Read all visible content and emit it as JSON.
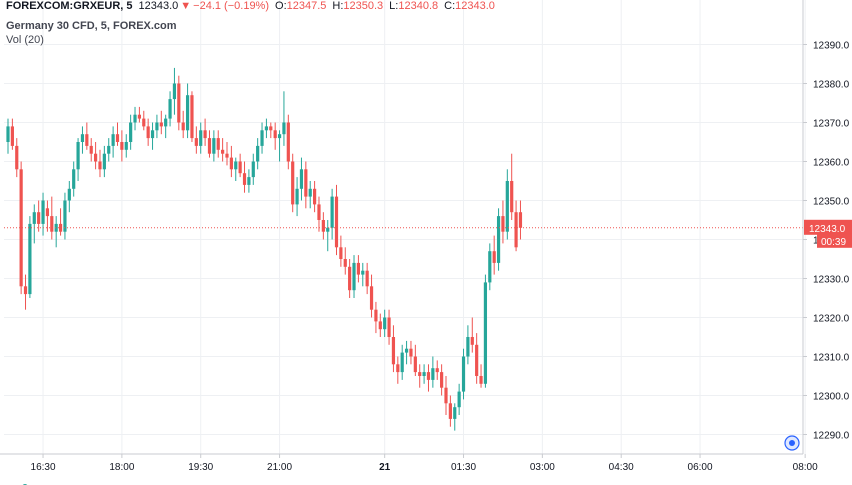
{
  "header": {
    "symbol": "FOREXCOM:GRXEUR, 5",
    "price": "12343.0",
    "change": "−24.1 (−0.19%)",
    "open_label": "O:",
    "open": "12347.5",
    "high_label": "H:",
    "high": "12350.3",
    "low_label": "L:",
    "low": "12340.8",
    "close_label": "C:",
    "close": "12343.0",
    "instrument": "Germany 30 CFD, 5, FOREX.com",
    "volume": "Vol (20)"
  },
  "price_tag": {
    "value": "12343.0",
    "countdown": "00:39"
  },
  "colors": {
    "up": "#26a69a",
    "down": "#ef5350",
    "grid": "#eef0f3",
    "axis_text": "#131722"
  },
  "chart_data": {
    "type": "candlestick",
    "ylim": [
      12285,
      12395
    ],
    "y_ticks": [
      12290,
      12300,
      12310,
      12320,
      12330,
      12340,
      12350,
      12360,
      12370,
      12380,
      12390
    ],
    "y_tick_labels": [
      "12290.0",
      "12300.0",
      "12310.0",
      "12320.0",
      "12330.0",
      "12340.0",
      "12350.0",
      "12360.0",
      "12370.0",
      "12380.0",
      "12390.0"
    ],
    "x_ticks": [
      "16:30",
      "18:00",
      "19:30",
      "21:00",
      "21",
      "01:30",
      "03:00",
      "04:30",
      "06:00",
      "08:00"
    ],
    "x_tick_index": [
      8,
      26,
      44,
      62,
      86,
      104,
      122,
      140,
      158,
      182
    ],
    "last_price": 12343.0,
    "ohlc": [
      [
        12365,
        12371,
        12362,
        12369
      ],
      [
        12369,
        12371,
        12363,
        12364
      ],
      [
        12364,
        12366,
        12356,
        12358
      ],
      [
        12358,
        12360,
        12326,
        12328
      ],
      [
        12328,
        12331,
        12322,
        12326
      ],
      [
        12326,
        12346,
        12325,
        12344
      ],
      [
        12344,
        12349,
        12339,
        12347
      ],
      [
        12347,
        12350,
        12342,
        12344
      ],
      [
        12344,
        12352,
        12341,
        12350
      ],
      [
        12348,
        12350,
        12342,
        12346
      ],
      [
        12346,
        12351,
        12340,
        12342
      ],
      [
        12342,
        12346,
        12338,
        12344
      ],
      [
        12344,
        12348,
        12341,
        12342
      ],
      [
        12342,
        12352,
        12340,
        12350
      ],
      [
        12350,
        12355,
        12347,
        12353
      ],
      [
        12353,
        12360,
        12351,
        12358
      ],
      [
        12358,
        12366,
        12355,
        12365
      ],
      [
        12365,
        12369,
        12362,
        12367
      ],
      [
        12367,
        12370,
        12363,
        12364
      ],
      [
        12364,
        12366,
        12360,
        12362
      ],
      [
        12362,
        12365,
        12358,
        12360
      ],
      [
        12360,
        12363,
        12356,
        12358
      ],
      [
        12358,
        12364,
        12356,
        12362
      ],
      [
        12362,
        12366,
        12360,
        12364
      ],
      [
        12364,
        12369,
        12361,
        12367
      ],
      [
        12367,
        12370,
        12364,
        12365
      ],
      [
        12365,
        12368,
        12360,
        12363
      ],
      [
        12363,
        12367,
        12361,
        12365
      ],
      [
        12365,
        12372,
        12363,
        12370
      ],
      [
        12370,
        12374,
        12368,
        12372
      ],
      [
        12372,
        12374,
        12370,
        12371
      ],
      [
        12371,
        12373,
        12368,
        12369
      ],
      [
        12369,
        12371,
        12364,
        12366
      ],
      [
        12366,
        12370,
        12363,
        12368
      ],
      [
        12368,
        12372,
        12366,
        12370
      ],
      [
        12370,
        12373,
        12367,
        12369
      ],
      [
        12369,
        12372,
        12366,
        12371
      ],
      [
        12371,
        12378,
        12369,
        12376
      ],
      [
        12376,
        12384,
        12372,
        12380
      ],
      [
        12380,
        12382,
        12368,
        12370
      ],
      [
        12370,
        12373,
        12366,
        12368
      ],
      [
        12368,
        12380,
        12366,
        12377
      ],
      [
        12377,
        12378,
        12365,
        12366
      ],
      [
        12366,
        12369,
        12362,
        12364
      ],
      [
        12364,
        12370,
        12362,
        12368
      ],
      [
        12368,
        12371,
        12364,
        12366
      ],
      [
        12366,
        12368,
        12361,
        12362
      ],
      [
        12362,
        12368,
        12360,
        12366
      ],
      [
        12366,
        12368,
        12361,
        12363
      ],
      [
        12363,
        12366,
        12360,
        12362
      ],
      [
        12362,
        12365,
        12359,
        12361
      ],
      [
        12361,
        12364,
        12356,
        12358
      ],
      [
        12358,
        12361,
        12355,
        12360
      ],
      [
        12360,
        12362,
        12356,
        12357
      ],
      [
        12357,
        12360,
        12352,
        12354
      ],
      [
        12354,
        12358,
        12352,
        12356
      ],
      [
        12356,
        12362,
        12354,
        12360
      ],
      [
        12360,
        12366,
        12358,
        12364
      ],
      [
        12364,
        12370,
        12362,
        12368
      ],
      [
        12368,
        12371,
        12366,
        12369
      ],
      [
        12369,
        12370,
        12366,
        12368
      ],
      [
        12368,
        12370,
        12363,
        12366
      ],
      [
        12366,
        12368,
        12360,
        12367
      ],
      [
        12367,
        12378,
        12364,
        12370
      ],
      [
        12370,
        12372,
        12358,
        12360
      ],
      [
        12360,
        12362,
        12347,
        12349
      ],
      [
        12349,
        12356,
        12346,
        12353
      ],
      [
        12353,
        12361,
        12350,
        12358
      ],
      [
        12358,
        12360,
        12348,
        12351
      ],
      [
        12351,
        12355,
        12348,
        12353
      ],
      [
        12353,
        12355,
        12347,
        12349
      ],
      [
        12349,
        12351,
        12342,
        12345
      ],
      [
        12345,
        12347,
        12340,
        12342
      ],
      [
        12342,
        12345,
        12337,
        12343
      ],
      [
        12343,
        12353,
        12340,
        12351
      ],
      [
        12351,
        12354,
        12336,
        12338
      ],
      [
        12338,
        12341,
        12333,
        12335
      ],
      [
        12335,
        12338,
        12331,
        12333
      ],
      [
        12333,
        12335,
        12325,
        12327
      ],
      [
        12327,
        12336,
        12325,
        12334
      ],
      [
        12334,
        12336,
        12329,
        12331
      ],
      [
        12331,
        12334,
        12328,
        12332
      ],
      [
        12332,
        12334,
        12326,
        12328
      ],
      [
        12328,
        12331,
        12320,
        12322
      ],
      [
        12322,
        12324,
        12316,
        12319
      ],
      [
        12319,
        12321,
        12315,
        12317
      ],
      [
        12317,
        12322,
        12315,
        12320
      ],
      [
        12320,
        12322,
        12313,
        12315
      ],
      [
        12315,
        12318,
        12306,
        12308
      ],
      [
        12308,
        12310,
        12303,
        12306
      ],
      [
        12306,
        12313,
        12304,
        12311
      ],
      [
        12311,
        12314,
        12308,
        12312
      ],
      [
        12312,
        12314,
        12308,
        12310
      ],
      [
        12310,
        12313,
        12305,
        12306
      ],
      [
        12306,
        12308,
        12302,
        12305
      ],
      [
        12305,
        12308,
        12303,
        12306
      ],
      [
        12306,
        12308,
        12301,
        12304
      ],
      [
        12304,
        12310,
        12302,
        12307
      ],
      [
        12307,
        12309,
        12304,
        12306
      ],
      [
        12306,
        12308,
        12300,
        12302
      ],
      [
        12302,
        12305,
        12295,
        12298
      ],
      [
        12298,
        12300,
        12292,
        12294
      ],
      [
        12294,
        12298,
        12291,
        12297
      ],
      [
        12297,
        12303,
        12295,
        12301
      ],
      [
        12301,
        12312,
        12299,
        12310
      ],
      [
        12310,
        12318,
        12308,
        12315
      ],
      [
        12315,
        12320,
        12311,
        12313
      ],
      [
        12313,
        12316,
        12303,
        12305
      ],
      [
        12305,
        12308,
        12302,
        12303
      ],
      [
        12303,
        12331,
        12302,
        12329
      ],
      [
        12329,
        12339,
        12327,
        12337
      ],
      [
        12337,
        12341,
        12331,
        12334
      ],
      [
        12334,
        12348,
        12332,
        12346
      ],
      [
        12346,
        12350,
        12339,
        12342
      ],
      [
        12342,
        12358,
        12340,
        12355
      ],
      [
        12355,
        12362,
        12345,
        12347
      ],
      [
        12347,
        12350,
        12337,
        12338
      ],
      [
        12347,
        12350,
        12340,
        12343
      ]
    ]
  }
}
